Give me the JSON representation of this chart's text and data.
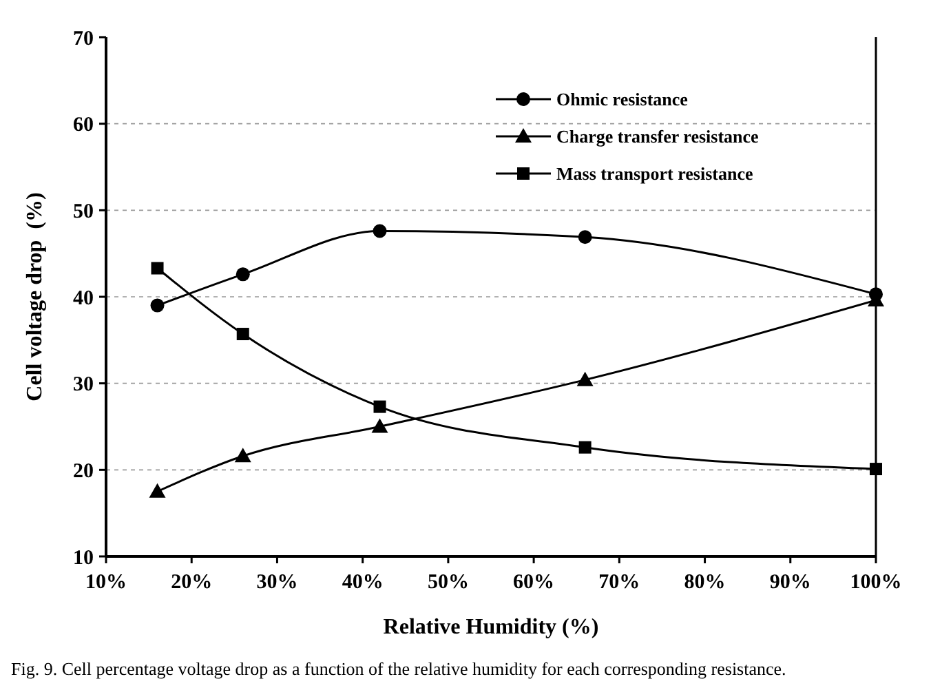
{
  "chart_data": {
    "type": "line",
    "xlabel": "Relative Humidity (%)",
    "ylabel": "Cell voltage drop  (%)",
    "x": [
      16,
      26,
      42,
      66,
      100
    ],
    "series": [
      {
        "name": "Ohmic resistance",
        "color": "#000000",
        "marker": "circle",
        "values": [
          39,
          42.6,
          47.6,
          46.9,
          40.3
        ]
      },
      {
        "name": "Charge transfer resistance",
        "color": "#000000",
        "marker": "triangle",
        "values": [
          17.5,
          21.6,
          25,
          30.4,
          39.6
        ]
      },
      {
        "name": "Mass transport resistance",
        "color": "#000000",
        "marker": "square",
        "values": [
          43.3,
          35.7,
          27.3,
          22.6,
          20.1
        ]
      }
    ],
    "xlim": [
      10,
      100
    ],
    "xticks": [
      {
        "value": 10,
        "label": "10%"
      },
      {
        "value": 20,
        "label": "20%"
      },
      {
        "value": 30,
        "label": "30%"
      },
      {
        "value": 40,
        "label": "40%"
      },
      {
        "value": 50,
        "label": "50%"
      },
      {
        "value": 60,
        "label": "60%"
      },
      {
        "value": 70,
        "label": "70%"
      },
      {
        "value": 80,
        "label": "80%"
      },
      {
        "value": 90,
        "label": "90%"
      },
      {
        "value": 100,
        "label": "100%"
      }
    ],
    "ylim": [
      10,
      70
    ],
    "yticks": [
      10,
      20,
      30,
      40,
      50,
      60,
      70
    ],
    "grid": "y",
    "legend": "top right",
    "line_style": "solid",
    "annotations": [
      "Fig. 9.  Cell percentage voltage drop as a function of the relative humidity for each corresponding resistance."
    ]
  }
}
